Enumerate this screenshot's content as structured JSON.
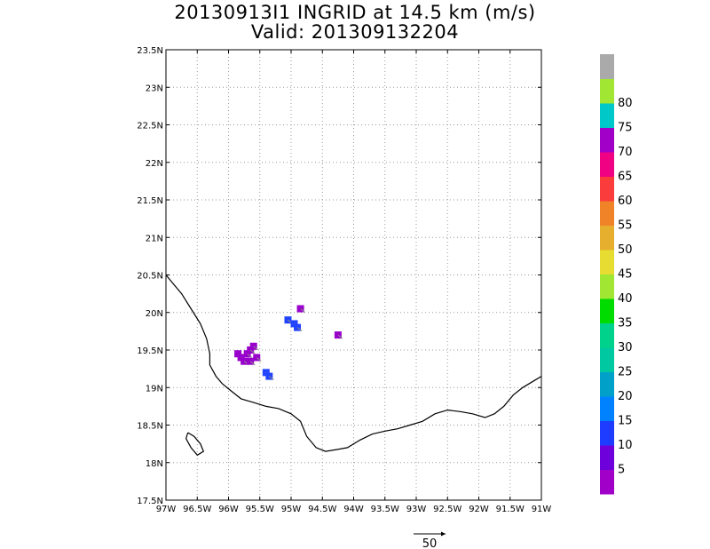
{
  "title": {
    "line1": "20130913I1 INGRID at 14.5 km (m/s)",
    "line2": "Valid: 201309132204"
  },
  "axes": {
    "lon_min": -97,
    "lon_max": -91,
    "lat_min": 17.5,
    "lat_max": 23.5,
    "x_tick_labels": [
      "97W",
      "96.5W",
      "96W",
      "95.5W",
      "95W",
      "94.5W",
      "94W",
      "93.5W",
      "93W",
      "92.5W",
      "92W",
      "91.5W",
      "91W"
    ],
    "x_tick_values": [
      -97,
      -96.5,
      -96,
      -95.5,
      -95,
      -94.5,
      -94,
      -93.5,
      -93,
      -92.5,
      -92,
      -91.5,
      -91
    ],
    "y_tick_labels": [
      "17.5N",
      "18N",
      "18.5N",
      "19N",
      "19.5N",
      "20N",
      "20.5N",
      "21N",
      "21.5N",
      "22N",
      "22.5N",
      "23N",
      "23.5N"
    ],
    "y_tick_values": [
      17.5,
      18,
      18.5,
      19,
      19.5,
      20,
      20.5,
      21,
      21.5,
      22,
      22.5,
      23,
      23.5
    ],
    "grid": true
  },
  "colorbar": {
    "labels": [
      "5",
      "10",
      "15",
      "20",
      "25",
      "30",
      "35",
      "40",
      "45",
      "50",
      "55",
      "60",
      "65",
      "70",
      "75",
      "80"
    ],
    "colors": [
      "#a000c8",
      "#6e00dc",
      "#1e3cff",
      "#0082ff",
      "#00a0c8",
      "#00c8a0",
      "#00d28c",
      "#00dc00",
      "#a0e632",
      "#e6dc32",
      "#e6af2d",
      "#f08228",
      "#fa3c3c",
      "#f00082",
      "#a000c8",
      "#00c8c8",
      "#a0e632",
      "#aaaaaa"
    ]
  },
  "reference_vector": {
    "label": "50"
  },
  "coastline_points": [
    [
      -97.0,
      20.5
    ],
    [
      -96.9,
      20.4
    ],
    [
      -96.75,
      20.25
    ],
    [
      -96.6,
      20.05
    ],
    [
      -96.45,
      19.85
    ],
    [
      -96.35,
      19.65
    ],
    [
      -96.3,
      19.45
    ],
    [
      -96.3,
      19.3
    ],
    [
      -96.2,
      19.15
    ],
    [
      -96.1,
      19.05
    ],
    [
      -95.95,
      18.95
    ],
    [
      -95.8,
      18.85
    ],
    [
      -95.6,
      18.8
    ],
    [
      -95.4,
      18.75
    ],
    [
      -95.2,
      18.72
    ],
    [
      -95.0,
      18.65
    ],
    [
      -94.85,
      18.55
    ],
    [
      -94.75,
      18.35
    ],
    [
      -94.6,
      18.2
    ],
    [
      -94.45,
      18.15
    ],
    [
      -94.3,
      18.17
    ],
    [
      -94.1,
      18.2
    ],
    [
      -93.9,
      18.3
    ],
    [
      -93.7,
      18.38
    ],
    [
      -93.5,
      18.42
    ],
    [
      -93.3,
      18.45
    ],
    [
      -93.1,
      18.5
    ],
    [
      -92.9,
      18.55
    ],
    [
      -92.7,
      18.65
    ],
    [
      -92.5,
      18.7
    ],
    [
      -92.3,
      18.68
    ],
    [
      -92.1,
      18.65
    ],
    [
      -91.9,
      18.6
    ],
    [
      -91.75,
      18.65
    ],
    [
      -91.6,
      18.75
    ],
    [
      -91.45,
      18.9
    ],
    [
      -91.3,
      19.0
    ],
    [
      -91.1,
      19.1
    ],
    [
      -91.0,
      19.15
    ]
  ],
  "island_points": [
    [
      -96.65,
      18.4
    ],
    [
      -96.55,
      18.35
    ],
    [
      -96.45,
      18.25
    ],
    [
      -96.4,
      18.15
    ],
    [
      -96.5,
      18.1
    ],
    [
      -96.6,
      18.2
    ],
    [
      -96.68,
      18.32
    ],
    [
      -96.65,
      18.4
    ]
  ],
  "wind_pixels": [
    {
      "lon": -95.85,
      "lat": 19.45,
      "speed": 5
    },
    {
      "lon": -95.8,
      "lat": 19.4,
      "speed": 5
    },
    {
      "lon": -95.75,
      "lat": 19.35,
      "speed": 5
    },
    {
      "lon": -95.7,
      "lat": 19.45,
      "speed": 5
    },
    {
      "lon": -95.65,
      "lat": 19.5,
      "speed": 5
    },
    {
      "lon": -95.6,
      "lat": 19.55,
      "speed": 5
    },
    {
      "lon": -95.65,
      "lat": 19.35,
      "speed": 5
    },
    {
      "lon": -95.55,
      "lat": 19.4,
      "speed": 5
    },
    {
      "lon": -95.4,
      "lat": 19.2,
      "speed": 10
    },
    {
      "lon": -95.35,
      "lat": 19.15,
      "speed": 10
    },
    {
      "lon": -95.05,
      "lat": 19.9,
      "speed": 10
    },
    {
      "lon": -94.95,
      "lat": 19.85,
      "speed": 10
    },
    {
      "lon": -94.9,
      "lat": 19.8,
      "speed": 10
    },
    {
      "lon": -94.85,
      "lat": 20.05,
      "speed": 5
    },
    {
      "lon": -94.25,
      "lat": 19.7,
      "speed": 5
    }
  ]
}
